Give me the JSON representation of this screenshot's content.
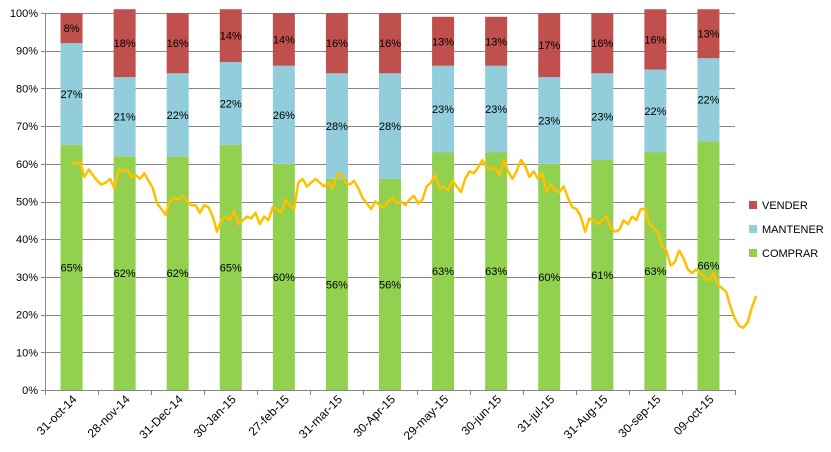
{
  "chart_data": {
    "type": "bar",
    "stacked": true,
    "ylim": [
      0,
      100
    ],
    "yticks": [
      0,
      10,
      20,
      30,
      40,
      50,
      60,
      70,
      80,
      90,
      100
    ],
    "ytick_labels": [
      "0%",
      "10%",
      "20%",
      "30%",
      "40%",
      "50%",
      "60%",
      "70%",
      "80%",
      "90%",
      "100%"
    ],
    "categories": [
      "31-oct-14",
      "28-nov-14",
      "31-Dec-14",
      "30-Jan-15",
      "27-feb-15",
      "31-mar-15",
      "30-Apr-15",
      "29-may-15",
      "30-jun-15",
      "31-jul-15",
      "31-Aug-15",
      "30-sep-15",
      "09-oct-15"
    ],
    "series": [
      {
        "name": "COMPRAR",
        "color": "#92D050",
        "values": [
          65,
          62,
          62,
          65,
          60,
          56,
          56,
          63,
          63,
          60,
          61,
          63,
          66
        ],
        "labels": [
          "65%",
          "62%",
          "62%",
          "65%",
          "60%",
          "56%",
          "56%",
          "63%",
          "63%",
          "60%",
          "61%",
          "63%",
          "66%"
        ]
      },
      {
        "name": "MANTENER",
        "color": "#92CDDC",
        "values": [
          27,
          21,
          22,
          22,
          26,
          28,
          28,
          23,
          23,
          23,
          23,
          22,
          22
        ],
        "labels": [
          "27%",
          "21%",
          "22%",
          "22%",
          "26%",
          "28%",
          "28%",
          "23%",
          "23%",
          "23%",
          "23%",
          "22%",
          "22%"
        ]
      },
      {
        "name": "VENDER",
        "color": "#C0504D",
        "values": [
          8,
          18,
          16,
          14,
          14,
          16,
          16,
          13,
          13,
          17,
          16,
          16,
          13
        ],
        "labels": [
          "8%",
          "18%",
          "16%",
          "14%",
          "14%",
          "16%",
          "16%",
          "13%",
          "13%",
          "17%",
          "16%",
          "16%",
          "13%"
        ]
      }
    ],
    "line": {
      "name": "",
      "color": "#FFC000",
      "x_start": 0,
      "x_end": 12.9,
      "values": [
        60.5,
        60,
        60.5,
        56.5,
        58.5,
        57,
        55.5,
        54.5,
        55,
        56,
        53.5,
        58.5,
        58,
        58.5,
        56.5,
        57,
        56,
        57.5,
        55.5,
        53.5,
        49.5,
        48,
        46.5,
        50,
        51,
        50.5,
        51.5,
        50,
        49,
        49,
        47,
        49,
        48.5,
        46,
        42,
        45,
        46,
        45,
        47.5,
        44,
        45,
        46,
        45.5,
        47,
        44,
        46,
        45,
        48.5,
        48,
        47,
        50.5,
        49,
        48,
        55,
        56,
        54,
        55,
        56,
        55,
        54,
        55,
        53.5,
        57,
        57.5,
        55,
        54.5,
        55.5,
        53.5,
        51,
        49.5,
        48,
        50,
        49,
        48.5,
        50,
        51,
        49.5,
        50,
        49,
        50.5,
        51.5,
        49.5,
        50.5,
        54,
        55,
        57,
        53.5,
        54,
        53,
        55.5,
        54,
        52.5,
        56,
        58,
        57.5,
        59,
        61,
        59,
        58.5,
        59,
        57,
        61,
        58,
        56,
        58,
        61,
        59.5,
        56.5,
        58,
        56,
        57.5,
        52.5,
        54.5,
        53,
        52.5,
        54,
        51,
        48.5,
        48,
        46,
        42,
        45.5,
        45,
        44,
        45,
        46,
        43,
        42,
        42.5,
        45,
        44,
        46,
        45,
        48,
        48,
        44,
        43,
        42,
        38,
        37,
        33,
        34,
        37,
        35,
        32,
        31,
        32,
        31,
        30,
        29,
        31,
        28,
        27,
        26,
        22,
        19,
        17,
        16.5,
        18,
        22,
        25
      ]
    },
    "legend": [
      "VENDER",
      "MANTENER",
      "COMPRAR"
    ],
    "legend_placement": "right",
    "grid": true
  }
}
